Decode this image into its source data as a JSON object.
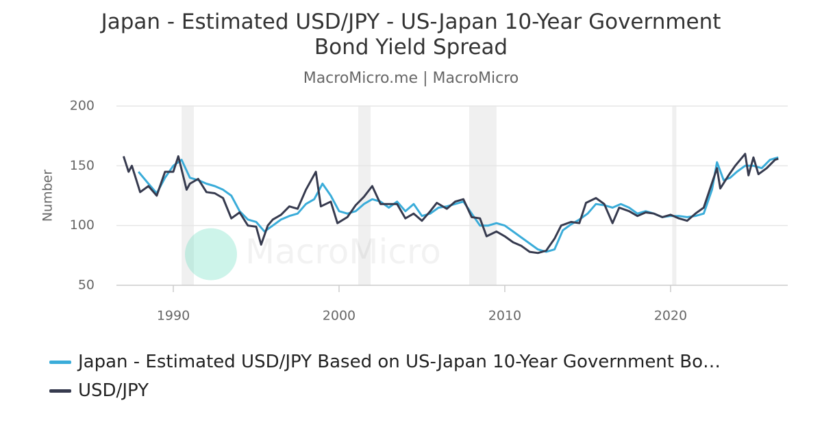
{
  "chart_data": {
    "type": "line",
    "title": "Japan - Estimated USD/JPY - US-Japan 10-Year Government Bond Yield Spread",
    "subtitle": "MacroMicro.me | MacroMicro",
    "watermark": "MacroMicro",
    "y_label": "Number",
    "xlim": [
      1986.57,
      2027.07
    ],
    "xticks": [
      1990,
      2000,
      2010,
      2020
    ],
    "ylim": [
      50,
      200
    ],
    "yticks": [
      50,
      100,
      150,
      200
    ],
    "grid": true,
    "shaded_ranges": [
      [
        1990.5,
        1991.24
      ],
      [
        2001.16,
        2001.9
      ],
      [
        2007.85,
        2009.5
      ],
      [
        2020.1,
        2020.35
      ]
    ],
    "legend_position": "bottom-left",
    "series": [
      {
        "name": "Japan - Estimated USD/JPY Based on US-Japan 10-Year Government Bo…",
        "color": "#3aacd9",
        "x": [
          1987.9,
          1988.5,
          1989.0,
          1989.5,
          1990.0,
          1990.5,
          1991.0,
          1991.5,
          1992.0,
          1992.5,
          1993.0,
          1993.5,
          1994.0,
          1994.5,
          1995.0,
          1995.5,
          1996.0,
          1996.5,
          1997.0,
          1997.5,
          1998.0,
          1998.5,
          1999.0,
          1999.5,
          2000.0,
          2000.5,
          2001.0,
          2001.5,
          2002.0,
          2002.5,
          2003.0,
          2003.5,
          2004.0,
          2004.5,
          2005.0,
          2005.5,
          2006.0,
          2006.5,
          2007.0,
          2007.5,
          2008.0,
          2008.5,
          2009.0,
          2009.5,
          2010.0,
          2010.5,
          2011.0,
          2011.5,
          2012.0,
          2012.5,
          2013.0,
          2013.5,
          2014.0,
          2014.5,
          2015.0,
          2015.5,
          2016.0,
          2016.5,
          2017.0,
          2017.5,
          2018.0,
          2018.5,
          2019.0,
          2019.5,
          2020.0,
          2020.5,
          2021.0,
          2021.5,
          2022.0,
          2022.5,
          2022.8,
          2023.2,
          2023.6,
          2024.0,
          2024.5,
          2025.0,
          2025.5,
          2026.0,
          2026.5
        ],
        "values": [
          145,
          135,
          127,
          140,
          150,
          155,
          140,
          138,
          135,
          133,
          130,
          125,
          112,
          105,
          103,
          95,
          100,
          105,
          108,
          110,
          118,
          122,
          135,
          125,
          112,
          110,
          112,
          118,
          122,
          120,
          115,
          120,
          112,
          118,
          108,
          110,
          115,
          116,
          118,
          120,
          110,
          100,
          100,
          102,
          100,
          95,
          90,
          85,
          80,
          78,
          80,
          96,
          101,
          105,
          110,
          118,
          117,
          115,
          118,
          115,
          110,
          112,
          110,
          107,
          108,
          108,
          107,
          108,
          110,
          130,
          153,
          138,
          140,
          145,
          150,
          150,
          148,
          155,
          157
        ]
      },
      {
        "name": "USD/JPY",
        "color": "#363a4e",
        "x": [
          1987.0,
          1987.3,
          1987.5,
          1988.0,
          1988.5,
          1989.0,
          1989.5,
          1990.0,
          1990.3,
          1990.8,
          1991.0,
          1991.5,
          1992.0,
          1992.5,
          1993.0,
          1993.5,
          1994.0,
          1994.5,
          1995.0,
          1995.3,
          1995.7,
          1996.0,
          1996.5,
          1997.0,
          1997.5,
          1998.0,
          1998.6,
          1998.9,
          1999.5,
          1999.9,
          2000.5,
          2001.0,
          2001.5,
          2002.0,
          2002.5,
          2003.0,
          2003.5,
          2004.0,
          2004.5,
          2005.0,
          2005.5,
          2005.9,
          2006.5,
          2007.0,
          2007.5,
          2008.0,
          2008.5,
          2008.9,
          2009.5,
          2010.0,
          2010.5,
          2011.0,
          2011.5,
          2012.0,
          2012.5,
          2013.0,
          2013.4,
          2014.0,
          2014.5,
          2014.9,
          2015.5,
          2016.0,
          2016.5,
          2016.9,
          2017.5,
          2018.0,
          2018.5,
          2019.0,
          2019.5,
          2020.0,
          2020.5,
          2021.0,
          2021.5,
          2022.0,
          2022.8,
          2023.0,
          2023.5,
          2023.9,
          2024.5,
          2024.7,
          2025.0,
          2025.3,
          2025.8,
          2026.3,
          2026.5
        ],
        "values": [
          158,
          145,
          150,
          128,
          133,
          125,
          145,
          145,
          158,
          130,
          135,
          139,
          128,
          127,
          123,
          106,
          111,
          100,
          99,
          84,
          100,
          105,
          109,
          116,
          114,
          130,
          145,
          116,
          120,
          102,
          107,
          117,
          124,
          133,
          118,
          118,
          118,
          106,
          110,
          104,
          112,
          119,
          114,
          120,
          122,
          107,
          106,
          91,
          95,
          91,
          86,
          83,
          78,
          77,
          79,
          89,
          100,
          103,
          102,
          119,
          123,
          118,
          102,
          115,
          112,
          108,
          111,
          110,
          107,
          109,
          106,
          104,
          110,
          115,
          148,
          131,
          142,
          150,
          160,
          142,
          157,
          143,
          148,
          155,
          156
        ]
      }
    ]
  }
}
